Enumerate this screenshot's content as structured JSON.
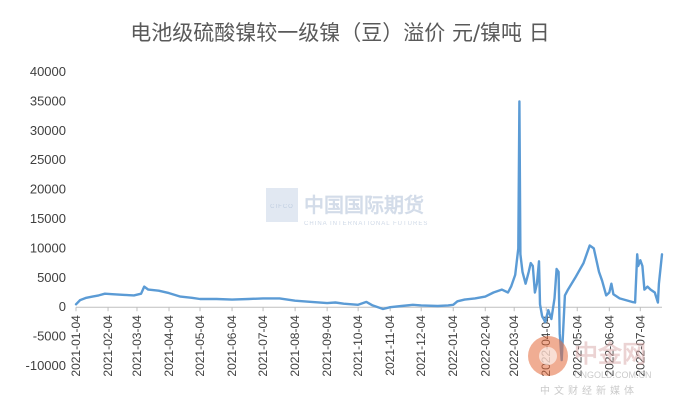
{
  "chart_data": {
    "type": "line",
    "title": "电池级硫酸镍较一级镍（豆）溢价 元/镍吨 日",
    "xlabel": "",
    "ylabel": "",
    "ylim": [
      -10000,
      40000
    ],
    "yticks": [
      -10000,
      -5000,
      0,
      5000,
      10000,
      15000,
      20000,
      25000,
      30000,
      35000,
      40000
    ],
    "xlim": [
      "2021-01-04",
      "2022-07-25"
    ],
    "xticks": [
      "2021-01-04",
      "2021-02-04",
      "2021-03-04",
      "2021-04-04",
      "2021-05-04",
      "2021-06-04",
      "2021-07-04",
      "2021-08-04",
      "2021-09-04",
      "2021-10-04",
      "2021-11-04",
      "2021-12-04",
      "2022-01-04",
      "2022-02-04",
      "2022-03-04",
      "2022-04-04",
      "2022-05-04",
      "2022-06-04",
      "2022-07-04"
    ],
    "grid": false,
    "series": [
      {
        "color": "#5b9bd5",
        "points": [
          [
            "2021-01-04",
            500
          ],
          [
            "2021-01-08",
            1200
          ],
          [
            "2021-01-14",
            1600
          ],
          [
            "2021-01-20",
            1800
          ],
          [
            "2021-01-26",
            2000
          ],
          [
            "2021-02-01",
            2300
          ],
          [
            "2021-02-10",
            2200
          ],
          [
            "2021-02-20",
            2100
          ],
          [
            "2021-03-01",
            2000
          ],
          [
            "2021-03-08",
            2300
          ],
          [
            "2021-03-11",
            3500
          ],
          [
            "2021-03-15",
            3000
          ],
          [
            "2021-03-25",
            2800
          ],
          [
            "2021-04-04",
            2400
          ],
          [
            "2021-04-15",
            1800
          ],
          [
            "2021-04-26",
            1600
          ],
          [
            "2021-05-04",
            1400
          ],
          [
            "2021-05-20",
            1400
          ],
          [
            "2021-06-04",
            1300
          ],
          [
            "2021-06-20",
            1400
          ],
          [
            "2021-07-04",
            1500
          ],
          [
            "2021-07-20",
            1500
          ],
          [
            "2021-08-04",
            1100
          ],
          [
            "2021-08-20",
            900
          ],
          [
            "2021-09-04",
            700
          ],
          [
            "2021-09-12",
            800
          ],
          [
            "2021-09-20",
            600
          ],
          [
            "2021-10-04",
            400
          ],
          [
            "2021-10-12",
            900
          ],
          [
            "2021-10-18",
            300
          ],
          [
            "2021-10-28",
            -300
          ],
          [
            "2021-11-04",
            0
          ],
          [
            "2021-11-15",
            200
          ],
          [
            "2021-11-26",
            400
          ],
          [
            "2021-12-04",
            300
          ],
          [
            "2021-12-20",
            200
          ],
          [
            "2021-12-30",
            300
          ],
          [
            "2022-01-04",
            400
          ],
          [
            "2022-01-08",
            1000
          ],
          [
            "2022-01-15",
            1300
          ],
          [
            "2022-01-25",
            1500
          ],
          [
            "2022-02-04",
            1800
          ],
          [
            "2022-02-12",
            2500
          ],
          [
            "2022-02-20",
            3000
          ],
          [
            "2022-02-26",
            2500
          ],
          [
            "2022-03-01",
            3500
          ],
          [
            "2022-03-05",
            5500
          ],
          [
            "2022-03-08",
            10000
          ],
          [
            "2022-03-09",
            35000
          ],
          [
            "2022-03-10",
            9000
          ],
          [
            "2022-03-12",
            6000
          ],
          [
            "2022-03-15",
            4000
          ],
          [
            "2022-03-18",
            6000
          ],
          [
            "2022-03-20",
            7500
          ],
          [
            "2022-03-22",
            7000
          ],
          [
            "2022-03-24",
            2500
          ],
          [
            "2022-03-26",
            4000
          ],
          [
            "2022-03-28",
            7800
          ],
          [
            "2022-03-29",
            500
          ],
          [
            "2022-03-31",
            -1500
          ],
          [
            "2022-04-03",
            -2500
          ],
          [
            "2022-04-06",
            -500
          ],
          [
            "2022-04-09",
            -2000
          ],
          [
            "2022-04-12",
            1500
          ],
          [
            "2022-04-14",
            6500
          ],
          [
            "2022-04-16",
            6000
          ],
          [
            "2022-04-17",
            -4500
          ],
          [
            "2022-04-19",
            -9000
          ],
          [
            "2022-04-22",
            2000
          ],
          [
            "2022-04-25",
            3000
          ],
          [
            "2022-05-02",
            5000
          ],
          [
            "2022-05-10",
            7500
          ],
          [
            "2022-05-16",
            10500
          ],
          [
            "2022-05-20",
            10000
          ],
          [
            "2022-05-25",
            6000
          ],
          [
            "2022-05-28",
            4500
          ],
          [
            "2022-06-01",
            2000
          ],
          [
            "2022-06-04",
            2500
          ],
          [
            "2022-06-06",
            4000
          ],
          [
            "2022-06-08",
            2200
          ],
          [
            "2022-06-14",
            1500
          ],
          [
            "2022-06-20",
            1200
          ],
          [
            "2022-06-26",
            900
          ],
          [
            "2022-06-29",
            800
          ],
          [
            "2022-07-01",
            9000
          ],
          [
            "2022-07-02",
            7000
          ],
          [
            "2022-07-04",
            8000
          ],
          [
            "2022-07-06",
            7000
          ],
          [
            "2022-07-08",
            3000
          ],
          [
            "2022-07-11",
            3500
          ],
          [
            "2022-07-14",
            3000
          ],
          [
            "2022-07-18",
            2500
          ],
          [
            "2022-07-21",
            800
          ],
          [
            "2022-07-22",
            4000
          ],
          [
            "2022-07-25",
            9000
          ]
        ]
      }
    ]
  },
  "watermarks": {
    "cifco_logo_text": "CIFCO",
    "cifco_name": "中国国际期货",
    "cifco_sub": "CHINA INTERNATIONAL FUTURES",
    "cnfol_name": "中金网",
    "cnfol_url": "CNGOLD.COM.CN",
    "cnfol_sub": "中文财经新媒体"
  }
}
